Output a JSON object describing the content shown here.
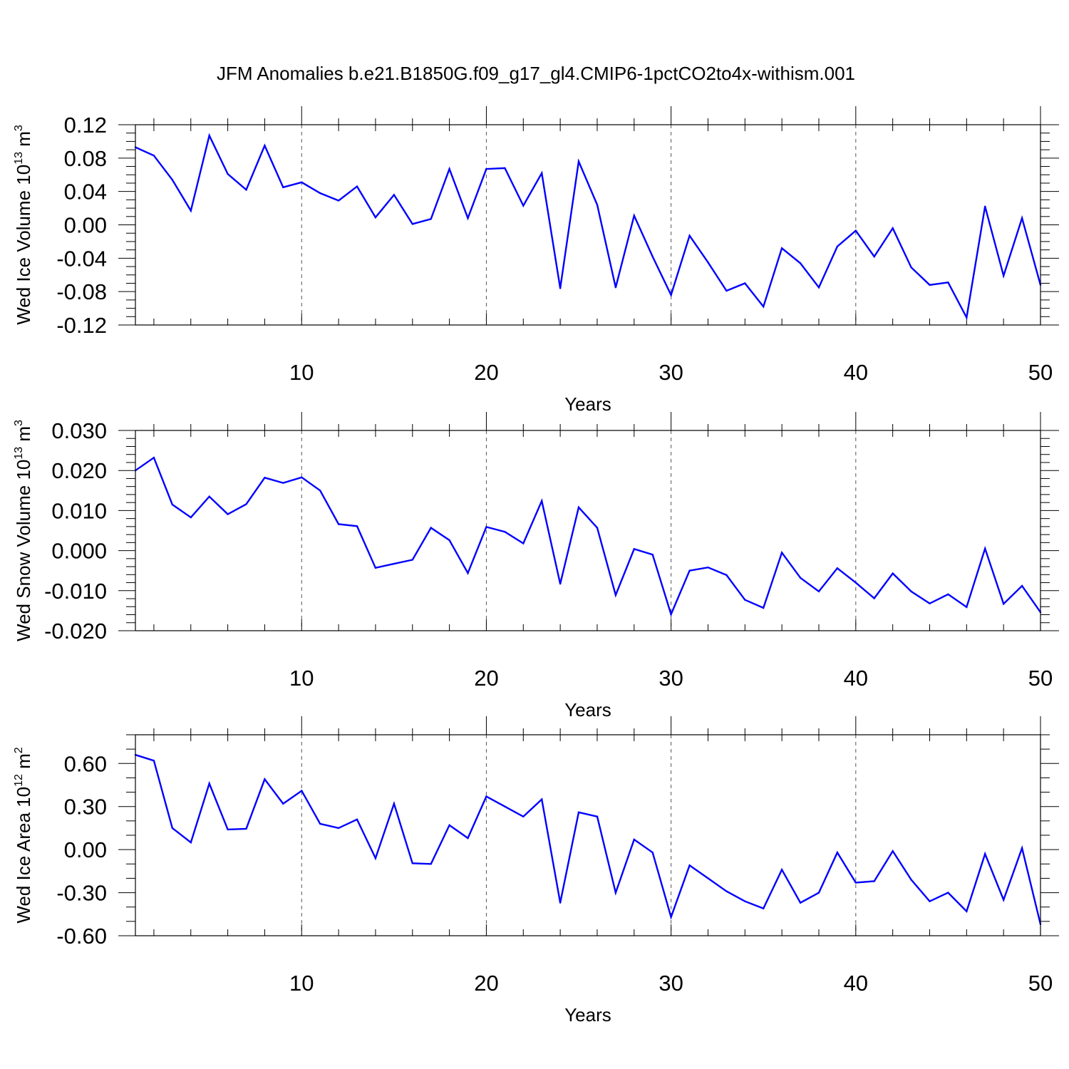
{
  "title": "JFM Anomalies b.e21.B1850G.f09_g17_gl4.CMIP6-1pctCO2to4x-withism.001",
  "colors": {
    "line": "#0000ff",
    "axes": "#000000",
    "grid": "#555555"
  },
  "chart_data": [
    {
      "type": "line",
      "ylabel_main": "Wed Ice Volume 10",
      "ylabel_exp": "13",
      "ylabel_unit": " m",
      "ylabel_unit_exp": "3",
      "xlabel": "Years",
      "xlim": [
        1,
        50
      ],
      "ylim": [
        -0.12,
        0.12
      ],
      "xticks": [
        10,
        20,
        30,
        40,
        50
      ],
      "xtick_labels": [
        "10",
        "20",
        "30",
        "40",
        "50"
      ],
      "yticks": [
        -0.12,
        -0.08,
        -0.04,
        0.0,
        0.04,
        0.08,
        0.12
      ],
      "ytick_labels": [
        "-0.12",
        "-0.08",
        "-0.04",
        "0.00",
        "0.04",
        "0.08",
        "0.12"
      ],
      "yminor_step": 0.01,
      "grid": "vertical dashed at major x ticks",
      "series": [
        {
          "x": [
            1,
            2,
            3,
            4,
            5,
            6,
            7,
            8,
            9,
            10,
            11,
            12,
            13,
            14,
            15,
            16,
            17,
            18,
            19,
            20,
            21,
            22,
            23,
            24,
            25,
            26,
            27,
            28,
            29,
            30,
            31,
            32,
            33,
            34,
            35,
            36,
            37,
            38,
            39,
            40,
            41,
            42,
            43,
            44,
            45,
            46,
            47,
            48,
            49,
            50
          ],
          "values": [
            0.093,
            0.083,
            0.054,
            0.017,
            0.107,
            0.061,
            0.042,
            0.095,
            0.045,
            0.051,
            0.038,
            0.029,
            0.046,
            0.009,
            0.036,
            0.001,
            0.007,
            0.067,
            0.008,
            0.067,
            0.068,
            0.023,
            0.062,
            -0.076,
            0.076,
            0.024,
            -0.075,
            0.011,
            -0.038,
            -0.084,
            -0.013,
            -0.045,
            -0.079,
            -0.07,
            -0.098,
            -0.028,
            -0.046,
            -0.075,
            -0.026,
            -0.007,
            -0.038,
            -0.004,
            -0.051,
            -0.072,
            -0.069,
            -0.111,
            0.022,
            -0.061,
            0.008,
            -0.072
          ]
        }
      ]
    },
    {
      "type": "line",
      "ylabel_main": "Wed Snow Volume 10",
      "ylabel_exp": "13",
      "ylabel_unit": " m",
      "ylabel_unit_exp": "3",
      "xlabel": "Years",
      "xlim": [
        1,
        50
      ],
      "ylim": [
        -0.02,
        0.03
      ],
      "xticks": [
        10,
        20,
        30,
        40,
        50
      ],
      "xtick_labels": [
        "10",
        "20",
        "30",
        "40",
        "50"
      ],
      "yticks": [
        -0.02,
        -0.01,
        0.0,
        0.01,
        0.02,
        0.03
      ],
      "ytick_labels": [
        "-0.020",
        "-0.010",
        "0.000",
        "0.010",
        "0.020",
        "0.030"
      ],
      "yminor_step": 0.002,
      "grid": "vertical dashed at major x ticks",
      "series": [
        {
          "x": [
            1,
            2,
            3,
            4,
            5,
            6,
            7,
            8,
            9,
            10,
            11,
            12,
            13,
            14,
            15,
            16,
            17,
            18,
            19,
            20,
            21,
            22,
            23,
            24,
            25,
            26,
            27,
            28,
            29,
            30,
            31,
            32,
            33,
            34,
            35,
            36,
            37,
            38,
            39,
            40,
            41,
            42,
            43,
            44,
            45,
            46,
            47,
            48,
            49,
            50
          ],
          "values": [
            0.02,
            0.0232,
            0.0115,
            0.0083,
            0.0135,
            0.0091,
            0.0116,
            0.0182,
            0.0169,
            0.0183,
            0.015,
            0.0066,
            0.0061,
            -0.0043,
            -0.0033,
            -0.0023,
            0.0057,
            0.0026,
            -0.0056,
            0.0059,
            0.0047,
            0.0018,
            0.0124,
            -0.0083,
            0.0108,
            0.0057,
            -0.0111,
            0.0004,
            -0.001,
            -0.0159,
            -0.005,
            -0.0042,
            -0.0061,
            -0.0123,
            -0.0143,
            -0.0005,
            -0.0068,
            -0.0102,
            -0.0044,
            -0.008,
            -0.0119,
            -0.0057,
            -0.0102,
            -0.0132,
            -0.0109,
            -0.0141,
            0.0005,
            -0.0133,
            -0.0088,
            -0.0154
          ]
        }
      ]
    },
    {
      "type": "line",
      "ylabel_main": "Wed Ice Area 10",
      "ylabel_exp": "12",
      "ylabel_unit": " m",
      "ylabel_unit_exp": "2",
      "xlabel": "Years",
      "xlim": [
        1,
        50
      ],
      "ylim": [
        -0.6,
        0.8
      ],
      "xticks": [
        10,
        20,
        30,
        40,
        50
      ],
      "xtick_labels": [
        "10",
        "20",
        "30",
        "40",
        "50"
      ],
      "yticks": [
        -0.6,
        -0.3,
        0.0,
        0.3,
        0.6
      ],
      "ytick_labels": [
        "-0.60",
        "-0.30",
        "0.00",
        "0.30",
        "0.60"
      ],
      "yminor_step": 0.1,
      "grid": "vertical dashed at major x ticks",
      "series": [
        {
          "x": [
            1,
            2,
            3,
            4,
            5,
            6,
            7,
            8,
            9,
            10,
            11,
            12,
            13,
            14,
            15,
            16,
            17,
            18,
            19,
            20,
            21,
            22,
            23,
            24,
            25,
            26,
            27,
            28,
            29,
            30,
            31,
            32,
            33,
            34,
            35,
            36,
            37,
            38,
            39,
            40,
            41,
            42,
            43,
            44,
            45,
            46,
            47,
            48,
            49,
            50
          ],
          "values": [
            0.66,
            0.62,
            0.15,
            0.05,
            0.46,
            0.14,
            0.145,
            0.49,
            0.32,
            0.41,
            0.18,
            0.15,
            0.21,
            -0.06,
            0.32,
            -0.095,
            -0.1,
            0.17,
            0.08,
            0.37,
            0.3,
            0.23,
            0.35,
            -0.37,
            0.26,
            0.23,
            -0.3,
            0.07,
            -0.02,
            -0.47,
            -0.11,
            -0.2,
            -0.29,
            -0.36,
            -0.41,
            -0.14,
            -0.37,
            -0.3,
            -0.02,
            -0.23,
            -0.22,
            -0.01,
            -0.21,
            -0.36,
            -0.3,
            -0.43,
            -0.03,
            -0.35,
            0.01,
            -0.52
          ]
        }
      ]
    }
  ]
}
